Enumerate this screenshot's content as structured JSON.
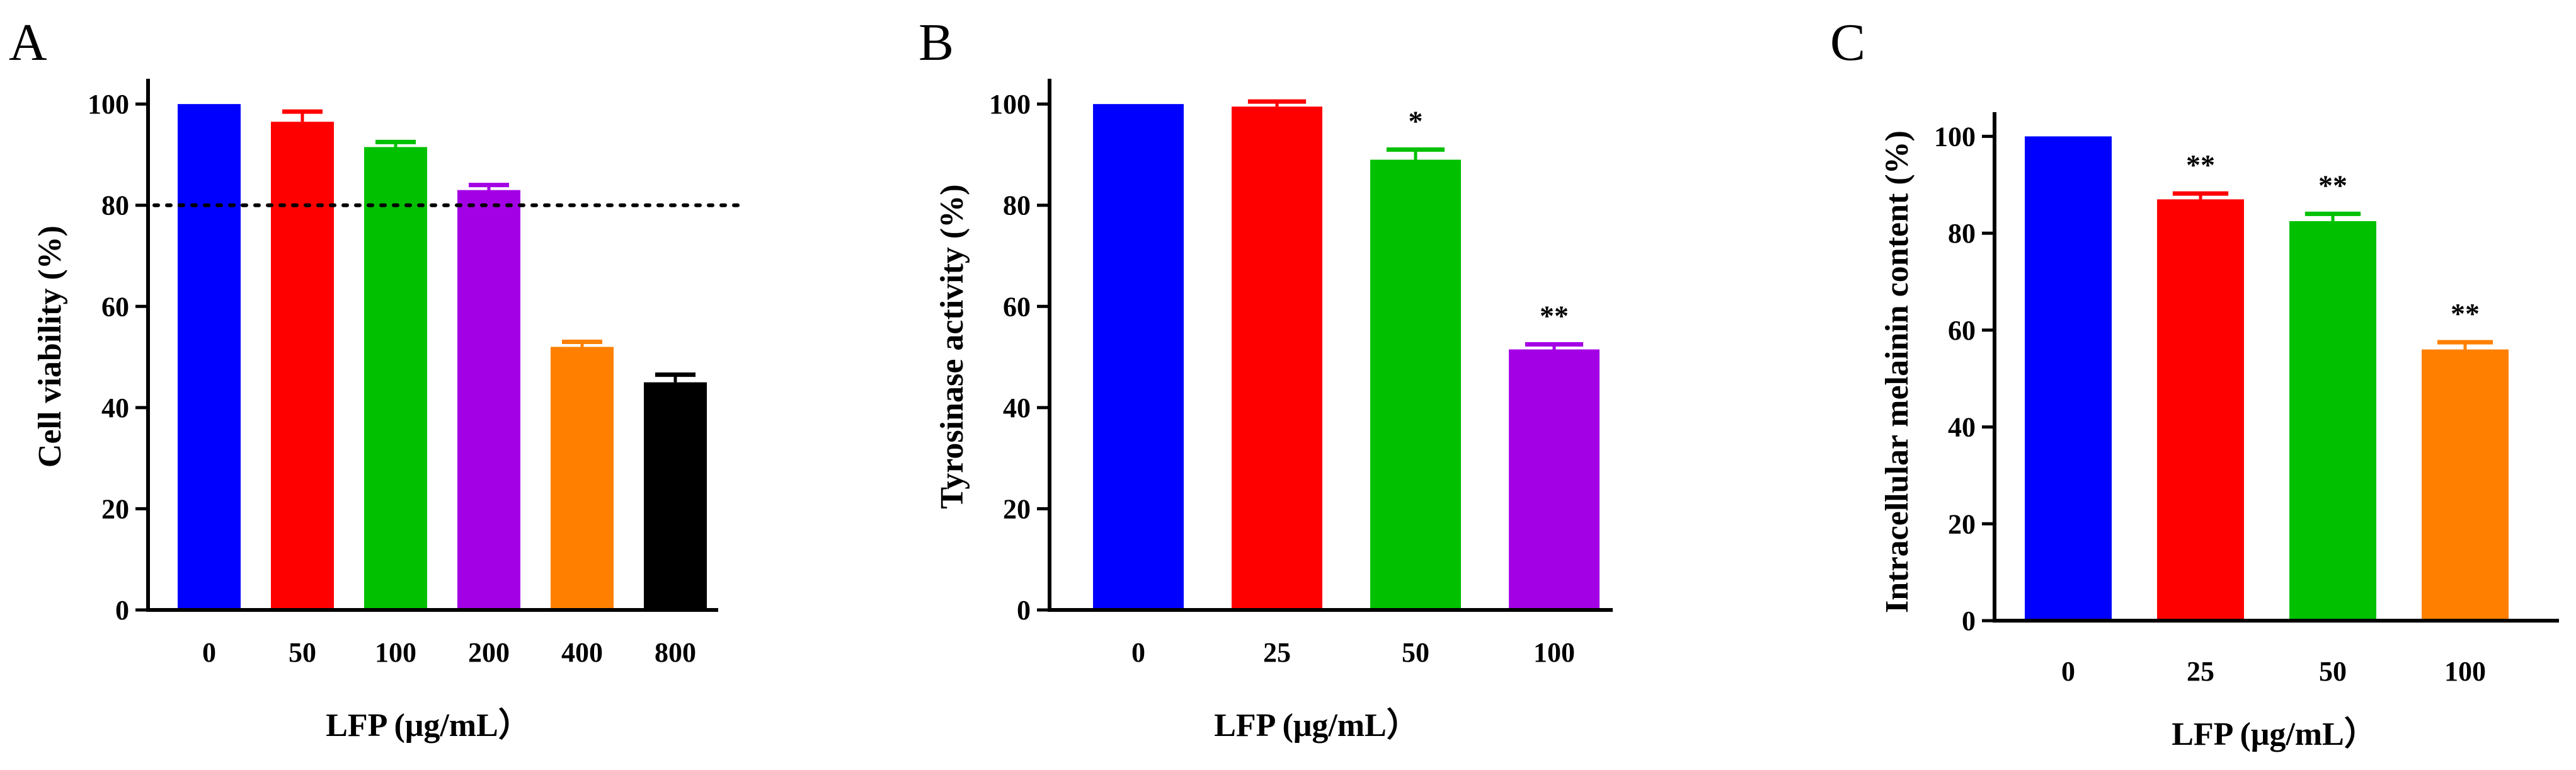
{
  "figure": {
    "axis_color": "#000000",
    "background": "#ffffff"
  },
  "chart_data": [
    {
      "panel": "A",
      "type": "bar",
      "title": "",
      "xlabel": "LFP (μg/mL）",
      "ylabel": "Cell viability (%)",
      "ylim": [
        0,
        105
      ],
      "yticks": [
        0,
        20,
        40,
        60,
        80,
        100
      ],
      "grid": false,
      "categories": [
        "0",
        "50",
        "100",
        "200",
        "400",
        "800"
      ],
      "values": [
        100,
        96.5,
        91.5,
        83,
        52,
        45
      ],
      "errors": [
        0,
        2,
        1,
        1,
        1,
        1.5
      ],
      "significance": [
        "",
        "",
        "",
        "",
        "",
        ""
      ],
      "colors": [
        "#0000ff",
        "#ff0000",
        "#00c000",
        "#a400e6",
        "#ff8000",
        "#000000"
      ],
      "reference_line": {
        "y": 80,
        "style": "dotted",
        "color": "#000000"
      }
    },
    {
      "panel": "B",
      "type": "bar",
      "title": "",
      "xlabel": "LFP (μg/mL）",
      "ylabel": "Tyrosinase activity (%)",
      "ylim": [
        0,
        105
      ],
      "yticks": [
        0,
        20,
        40,
        60,
        80,
        100
      ],
      "grid": false,
      "categories": [
        "0",
        "25",
        "50",
        "100"
      ],
      "values": [
        100,
        99.5,
        89,
        51.5
      ],
      "errors": [
        0,
        1,
        2,
        1
      ],
      "significance": [
        "",
        "",
        "*",
        "**"
      ],
      "colors": [
        "#0000ff",
        "#ff0000",
        "#00c000",
        "#a400e6"
      ]
    },
    {
      "panel": "C",
      "type": "bar",
      "title": "",
      "xlabel": "LFP (μg/mL）",
      "ylabel": "Intracellular melainin content (%)",
      "ylim": [
        0,
        105
      ],
      "yticks": [
        0,
        20,
        40,
        60,
        80,
        100
      ],
      "grid": false,
      "categories": [
        "0",
        "25",
        "50",
        "100"
      ],
      "values": [
        100,
        87,
        82.5,
        56
      ],
      "errors": [
        0,
        1.2,
        1.5,
        1.5
      ],
      "significance": [
        "",
        "**",
        "**",
        "**"
      ],
      "colors": [
        "#0000ff",
        "#ff0000",
        "#00c000",
        "#ff8000"
      ]
    }
  ]
}
